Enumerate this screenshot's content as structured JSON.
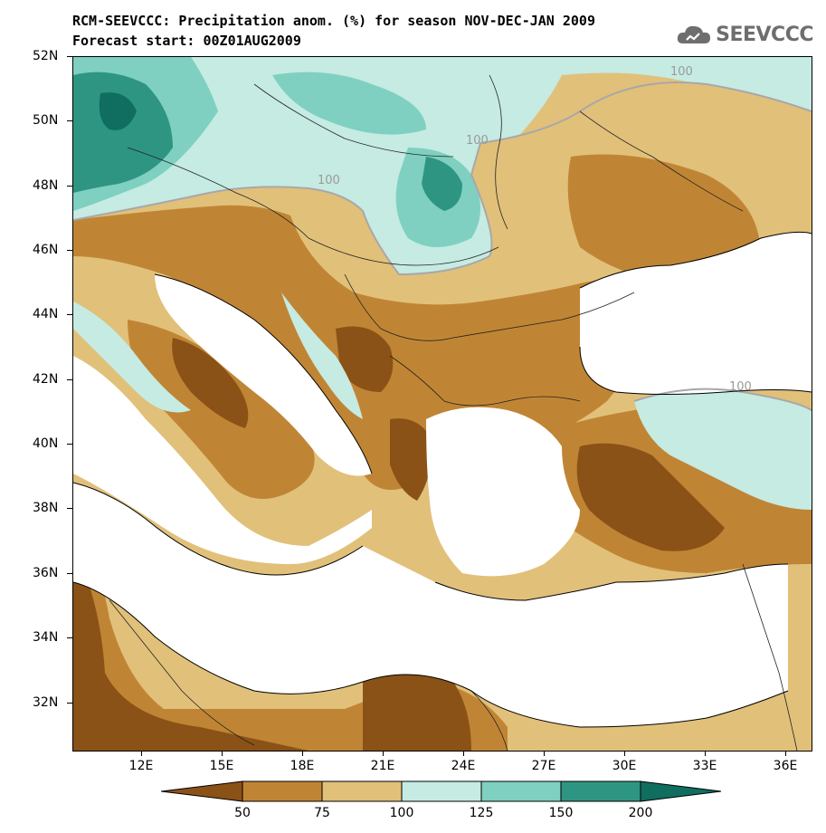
{
  "header": {
    "title": "RCM-SEEVCCC: Precipitation anom. (%) for season NOV-DEC-JAN 2009",
    "subtitle": "Forecast start: 00Z01AUG2009",
    "logo_text": "SEEVCCC",
    "logo_icon": "cloud-icon"
  },
  "map": {
    "lat_labels": [
      "52N",
      "50N",
      "48N",
      "46N",
      "44N",
      "42N",
      "40N",
      "38N",
      "36N",
      "34N",
      "32N"
    ],
    "lon_labels": [
      "12E",
      "15E",
      "18E",
      "21E",
      "24E",
      "27E",
      "30E",
      "33E",
      "36E"
    ],
    "contour_labels": [
      "100",
      "100",
      "100",
      "100"
    ]
  },
  "legend": {
    "labels": [
      "50",
      "75",
      "100",
      "125",
      "150",
      "200"
    ],
    "colors": [
      "#8a5216",
      "#c08534",
      "#e1c07a",
      "#c5ebe3",
      "#7fd0c0",
      "#2f9583",
      "#0f6e60"
    ]
  }
}
